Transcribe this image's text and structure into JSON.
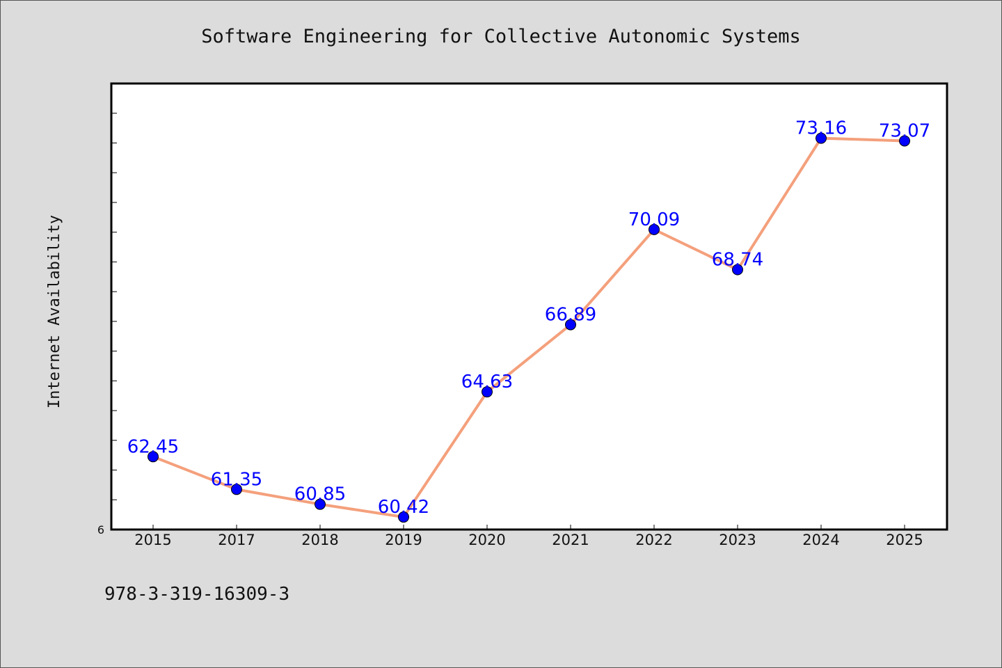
{
  "chart_data": {
    "type": "line",
    "title": "Software Engineering for Collective Autonomic Systems",
    "xlabel": "",
    "ylabel": "Internet Availability",
    "categories": [
      "2015",
      "2017",
      "2018",
      "2019",
      "2020",
      "2021",
      "2022",
      "2023",
      "2024",
      "2025"
    ],
    "series": [
      {
        "values": [
          62.45,
          61.35,
          60.85,
          60.42,
          64.63,
          66.89,
          70.09,
          68.74,
          73.16,
          73.07
        ],
        "labels": [
          "62.45",
          "61.35",
          "60.85",
          "60.42",
          "64.63",
          "66.89",
          "70.09",
          "68.74",
          "73.16",
          "73.07"
        ]
      }
    ],
    "ylim": [
      60,
      75
    ],
    "y_tick_labels": [
      "6"
    ],
    "grid": false,
    "legend": "none",
    "line_color": "#f4a07c",
    "marker_color": "#0000ff",
    "label_color": "#0000ff",
    "plot_background": "#ffffff",
    "figure_background": "#dcdcdc"
  },
  "footer": {
    "isbn": "978-3-319-16309-3"
  }
}
